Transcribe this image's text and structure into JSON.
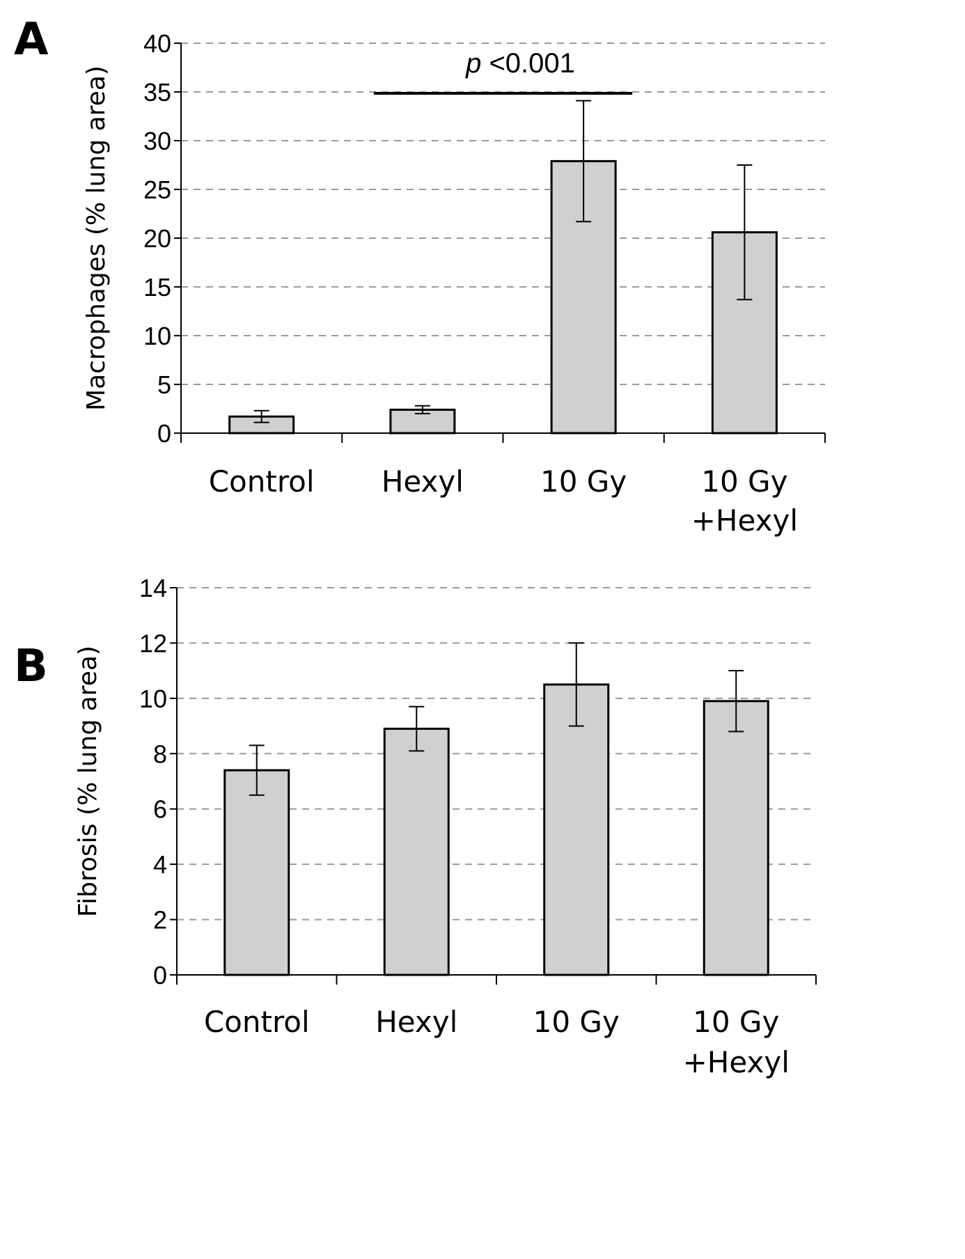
{
  "chart_data": [
    {
      "type": "bar",
      "panel": "A",
      "categories": [
        "Control",
        "Hexyl",
        "10 Gy",
        "10 Gy +Hexyl"
      ],
      "category_lines": [
        [
          "Control"
        ],
        [
          "Hexyl"
        ],
        [
          "10 Gy"
        ],
        [
          "10 Gy",
          "+Hexyl"
        ]
      ],
      "values": [
        1.7,
        2.4,
        27.9,
        20.6
      ],
      "error": [
        0.6,
        0.4,
        6.2,
        6.9
      ],
      "ylabel": "Macrophages (% lung area)",
      "xlabel": "",
      "ylim": [
        0,
        40
      ],
      "yticks": [
        0,
        5,
        10,
        15,
        20,
        25,
        30,
        35,
        40
      ],
      "grid": "dashed horizontal",
      "bar_color": "#d0d0d0",
      "annotation": {
        "p_symbol": "p",
        "p_text": " <0.001",
        "from_category": "Hexyl",
        "to_category": "10 Gy"
      }
    },
    {
      "type": "bar",
      "panel": "B",
      "categories": [
        "Control",
        "Hexyl",
        "10 Gy",
        "10 Gy +Hexyl"
      ],
      "category_lines": [
        [
          "Control"
        ],
        [
          "Hexyl"
        ],
        [
          "10 Gy"
        ],
        [
          "10 Gy",
          "+Hexyl"
        ]
      ],
      "values": [
        7.4,
        8.9,
        10.5,
        9.9
      ],
      "error": [
        0.9,
        0.8,
        1.5,
        1.1
      ],
      "ylabel": "Fibrosis (% lung area)",
      "xlabel": "",
      "ylim": [
        0,
        14
      ],
      "yticks": [
        0,
        2,
        4,
        6,
        8,
        10,
        12,
        14
      ],
      "grid": "dashed horizontal",
      "bar_color": "#d0d0d0"
    }
  ]
}
